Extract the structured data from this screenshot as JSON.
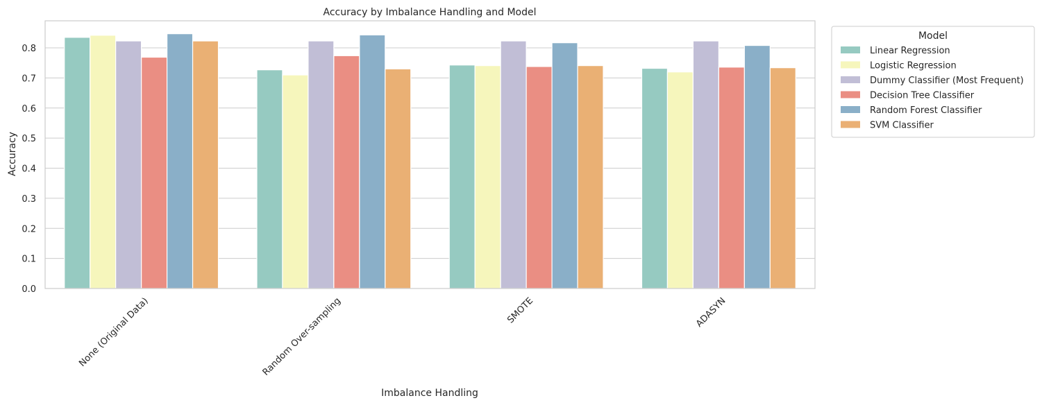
{
  "chart_data": {
    "type": "bar",
    "title": "Accuracy by Imbalance Handling and Model",
    "xlabel": "Imbalance Handling",
    "ylabel": "Accuracy",
    "ylim": [
      0,
      0.89
    ],
    "yticks": [
      0.0,
      0.1,
      0.2,
      0.3,
      0.4,
      0.5,
      0.6,
      0.7,
      0.8
    ],
    "ytick_labels": [
      "0.0",
      "0.1",
      "0.2",
      "0.3",
      "0.4",
      "0.5",
      "0.6",
      "0.7",
      "0.8"
    ],
    "grid": "horizontal",
    "categories": [
      "None (Original Data)",
      "Random Over-sampling",
      "SMOTE",
      "ADASYN"
    ],
    "legend": {
      "title": "Model",
      "placement": "outside-upper-right"
    },
    "series": [
      {
        "name": "Linear Regression",
        "color": "#96cac1",
        "values": [
          0.835,
          0.727,
          0.743,
          0.732
        ]
      },
      {
        "name": "Logistic Regression",
        "color": "#f6f6bc",
        "values": [
          0.842,
          0.71,
          0.741,
          0.72
        ]
      },
      {
        "name": "Dummy Classifier (Most Frequent)",
        "color": "#c1bed6",
        "values": [
          0.823,
          0.823,
          0.823,
          0.823
        ]
      },
      {
        "name": "Decision Tree Classifier",
        "color": "#ea8e83",
        "values": [
          0.769,
          0.774,
          0.738,
          0.736
        ]
      },
      {
        "name": "Random Forest Classifier",
        "color": "#8aafc8",
        "values": [
          0.847,
          0.843,
          0.817,
          0.808
        ]
      },
      {
        "name": "SVM Classifier",
        "color": "#eab074",
        "values": [
          0.823,
          0.73,
          0.741,
          0.734
        ]
      }
    ]
  }
}
